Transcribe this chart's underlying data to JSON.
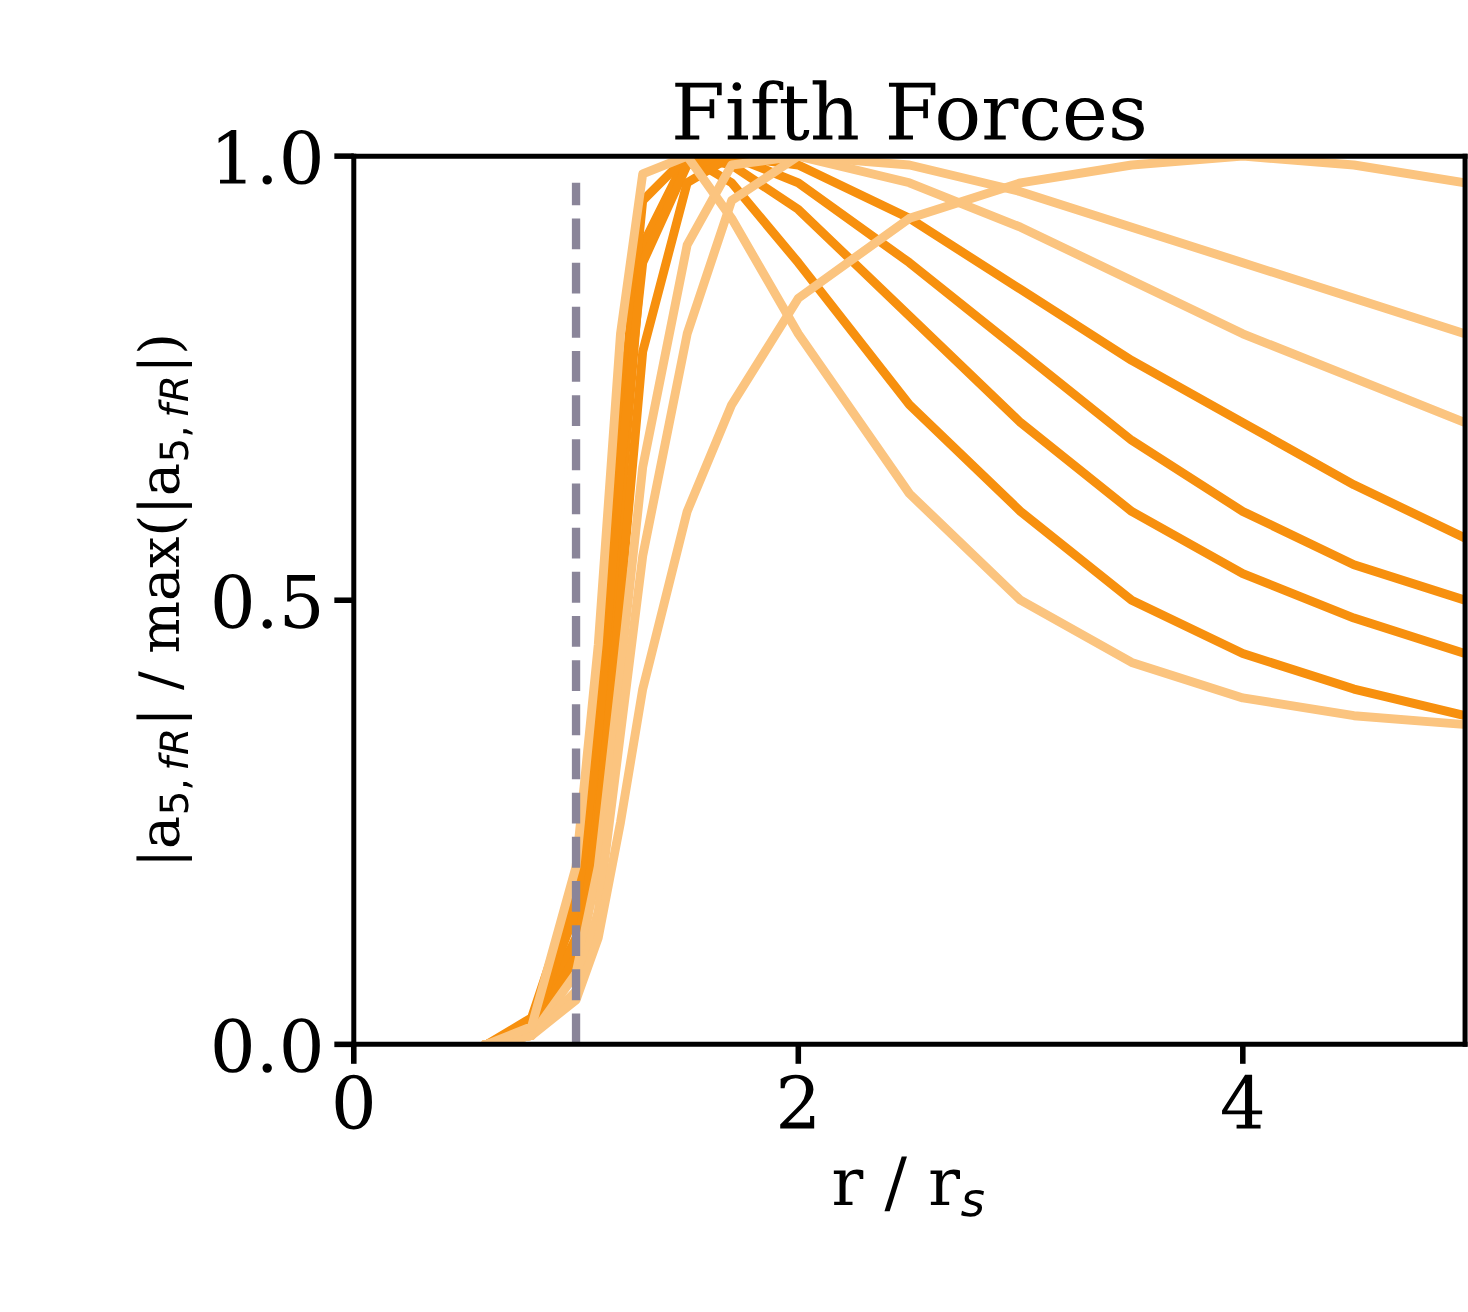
{
  "chart_data": {
    "type": "line",
    "title": "Fifth Forces",
    "xlabel": "r / r$_{s}$",
    "ylabel": "|a$_{5,f}$$_{R}$| / max(|a$_{5,f}$$_{R}$|)",
    "x": [
      0.6,
      0.8,
      1.0,
      1.1,
      1.2,
      1.3,
      1.5,
      1.7,
      2.0,
      2.5,
      3.0,
      3.5,
      4.0,
      4.5,
      5.0
    ],
    "series": [
      {
        "color": "#f7900e",
        "values": [
          0,
          0.02,
          0.12,
          0.3,
          0.6,
          0.9,
          1.0,
          0.97,
          0.88,
          0.72,
          0.6,
          0.5,
          0.44,
          0.4,
          0.37
        ]
      },
      {
        "color": "#f7900e",
        "values": [
          0,
          0.03,
          0.18,
          0.4,
          0.7,
          0.95,
          1.0,
          0.99,
          0.94,
          0.82,
          0.7,
          0.6,
          0.53,
          0.48,
          0.44
        ]
      },
      {
        "color": "#f7900e",
        "values": [
          0,
          0.02,
          0.15,
          0.35,
          0.65,
          0.88,
          0.99,
          1.0,
          0.97,
          0.88,
          0.78,
          0.68,
          0.6,
          0.54,
          0.5
        ]
      },
      {
        "color": "#f7900e",
        "values": [
          0,
          0.01,
          0.1,
          0.25,
          0.5,
          0.78,
          0.97,
          1.0,
          0.99,
          0.93,
          0.85,
          0.77,
          0.7,
          0.63,
          0.57
        ]
      },
      {
        "color": "#fbc47f",
        "values": [
          0,
          0.01,
          0.08,
          0.2,
          0.42,
          0.65,
          0.9,
          0.99,
          1.0,
          0.97,
          0.92,
          0.86,
          0.8,
          0.75,
          0.7
        ]
      },
      {
        "color": "#fbc47f",
        "values": [
          0,
          0.01,
          0.06,
          0.15,
          0.35,
          0.55,
          0.8,
          0.95,
          1.0,
          0.99,
          0.96,
          0.92,
          0.88,
          0.84,
          0.8
        ]
      },
      {
        "color": "#fbc47f",
        "values": [
          0,
          0.01,
          0.05,
          0.12,
          0.25,
          0.4,
          0.6,
          0.72,
          0.84,
          0.93,
          0.97,
          0.99,
          1.0,
          0.99,
          0.97
        ]
      },
      {
        "color": "#fbc47f",
        "values": [
          0,
          0.02,
          0.2,
          0.45,
          0.8,
          0.98,
          1.0,
          0.93,
          0.8,
          0.62,
          0.5,
          0.43,
          0.39,
          0.37,
          0.36
        ]
      }
    ],
    "xlim": [
      0,
      5
    ],
    "xticks": [
      0,
      2,
      4
    ],
    "ylim": [
      0,
      1.0
    ],
    "yticks": [
      {
        "value": 0,
        "label": "0.0"
      },
      {
        "value": 0.5,
        "label": "0.5"
      },
      {
        "value": 1.0,
        "label": "1.0"
      }
    ],
    "ref_lines": [
      {
        "axis": "x",
        "value": 1,
        "color": "#8a8599",
        "line_style": "dashed"
      }
    ],
    "grid": false,
    "legend": false,
    "marker": "none",
    "line_style": "solid"
  }
}
